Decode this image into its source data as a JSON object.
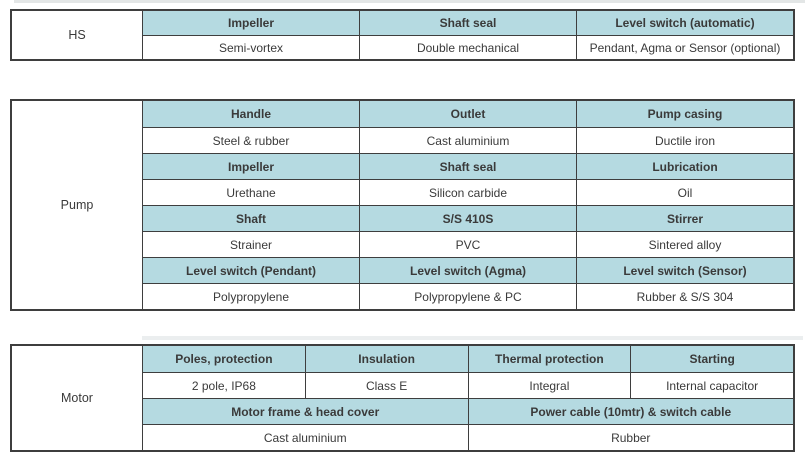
{
  "colors": {
    "header_bg": "#b5dae1",
    "border": "#3e3e3e",
    "text": "#3a3a3a"
  },
  "sections": [
    {
      "label": "HS",
      "rows": [
        {
          "type": "header",
          "cells": [
            "Impeller",
            "Shaft seal",
            "Level switch (automatic)"
          ]
        },
        {
          "type": "value",
          "cells": [
            "Semi-vortex",
            "Double mechanical",
            "Pendant, Agma or Sensor (optional)"
          ]
        }
      ]
    },
    {
      "label": "Pump",
      "rows": [
        {
          "type": "header",
          "cells": [
            "Handle",
            "Outlet",
            "Pump casing"
          ]
        },
        {
          "type": "value",
          "cells": [
            "Steel & rubber",
            "Cast aluminium",
            "Ductile iron"
          ]
        },
        {
          "type": "header",
          "cells": [
            "Impeller",
            "Shaft seal",
            "Lubrication"
          ]
        },
        {
          "type": "value",
          "cells": [
            "Urethane",
            "Silicon carbide",
            "Oil"
          ]
        },
        {
          "type": "header",
          "cells": [
            "Shaft",
            "S/S 410S",
            "Stirrer"
          ]
        },
        {
          "type": "value",
          "cells": [
            "Strainer",
            "PVC",
            "Sintered alloy"
          ]
        },
        {
          "type": "header",
          "cells": [
            "Level switch (Pendant)",
            "Level switch (Agma)",
            "Level switch (Sensor)"
          ]
        },
        {
          "type": "value",
          "cells": [
            "Polypropylene",
            "Polypropylene & PC",
            "Rubber & S/S 304"
          ]
        }
      ]
    },
    {
      "label": "Motor",
      "rows": [
        {
          "type": "header",
          "cells": [
            "Poles, protection",
            "Insulation",
            "Thermal protection",
            "Starting"
          ]
        },
        {
          "type": "value",
          "cells": [
            "2 pole, IP68",
            "Class E",
            "Integral",
            "Internal capacitor"
          ]
        },
        {
          "type": "header",
          "cells": [
            "Motor frame & head cover",
            "Power cable (10mtr) & switch cable"
          ]
        },
        {
          "type": "value",
          "cells": [
            "Cast aluminium",
            "Rubber"
          ]
        }
      ]
    }
  ]
}
